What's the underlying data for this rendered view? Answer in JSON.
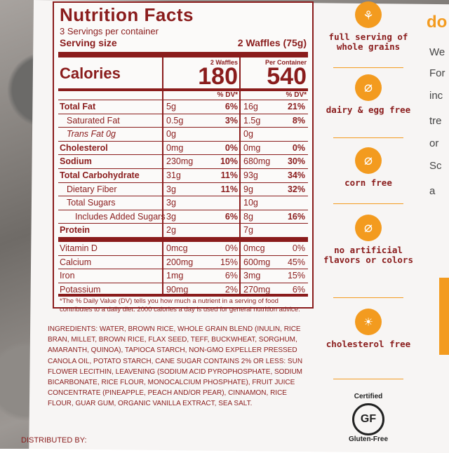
{
  "label": {
    "title": "Nutrition Facts",
    "servings": "3 Servings per container",
    "serving_size_label": "Serving size",
    "serving_size_value": "2 Waffles (75g)",
    "calories_label": "Calories",
    "col1_header": "2 Waffles",
    "col2_header": "Per Container",
    "calories_col1": "180",
    "calories_col2": "540",
    "dv_header": "% DV*",
    "rows": [
      {
        "name": "Total Fat",
        "a": "5g",
        "pa": "6%",
        "b": "16g",
        "pb": "21%"
      },
      {
        "name": "Saturated Fat",
        "a": "0.5g",
        "pa": "3%",
        "b": "1.5g",
        "pb": "8%"
      },
      {
        "name": "Trans Fat 0g",
        "a": "0g",
        "pa": "",
        "b": "0g",
        "pb": ""
      },
      {
        "name": "Cholesterol",
        "a": "0mg",
        "pa": "0%",
        "b": "0mg",
        "pb": "0%"
      },
      {
        "name": "Sodium",
        "a": "230mg",
        "pa": "10%",
        "b": "680mg",
        "pb": "30%"
      },
      {
        "name": "Total Carbohydrate",
        "a": "31g",
        "pa": "11%",
        "b": "93g",
        "pb": "34%"
      },
      {
        "name": "Dietary Fiber",
        "a": "3g",
        "pa": "11%",
        "b": "9g",
        "pb": "32%"
      },
      {
        "name": "Total Sugars",
        "a": "3g",
        "pa": "",
        "b": "10g",
        "pb": ""
      },
      {
        "name": "Includes Added Sugars",
        "a": "3g",
        "pa": "6%",
        "b": "8g",
        "pb": "16%"
      },
      {
        "name": "Protein",
        "a": "2g",
        "pa": "",
        "b": "7g",
        "pb": ""
      },
      {
        "name": "Vitamin D",
        "a": "0mcg",
        "pa": "0%",
        "b": "0mcg",
        "pb": "0%"
      },
      {
        "name": "Calcium",
        "a": "200mg",
        "pa": "15%",
        "b": "600mg",
        "pb": "45%"
      },
      {
        "name": "Iron",
        "a": "1mg",
        "pa": "6%",
        "b": "3mg",
        "pb": "15%"
      },
      {
        "name": "Potassium",
        "a": "90mg",
        "pa": "2%",
        "b": "270mg",
        "pb": "6%"
      }
    ],
    "footnote": "*The % Daily Value (DV) tells you how much a nutrient in a serving of food contributes to a daily diet. 2000 calories a day is used for general nutrition advice."
  },
  "ingredients": "Ingredients: Water, Brown Rice, Whole Grain Blend (Inulin, Rice Bran, Millet, Brown Rice, Flax Seed, Teff, Buckwheat, Sorghum, Amaranth, Quinoa), Tapioca Starch, Non-GMO Expeller Pressed Canola Oil, Potato Starch, Cane Sugar Contains 2% or less: Sun Flower Lecithin, Leavening (Sodium Acid Pyrophosphate, Sodium Bicarbonate, Rice Flour, Monocalcium Phosphate), Fruit Juice Concentrate (Pineapple, Peach and/or Pear), Cinnamon, Rice Flour, Guar Gum, Organic Vanilla Extract, Sea Salt.",
  "distributed": "DISTRIBUTED BY:",
  "badges": [
    {
      "icon": "wheat-icon",
      "label": "full serving of whole grains"
    },
    {
      "icon": "no-dairy-egg-icon",
      "label": "dairy & egg free"
    },
    {
      "icon": "no-corn-icon",
      "label": "corn free"
    },
    {
      "icon": "no-flask-icon",
      "label": "no artificial flavors or colors"
    },
    {
      "icon": "sunflower-icon",
      "label": "cholesterol free"
    }
  ],
  "gluten": {
    "certified": "Certified",
    "gf": "GF",
    "gluten_free": "Gluten-Free"
  },
  "right_fragment": {
    "heading": "do",
    "lines": [
      "We",
      "For",
      "inc",
      "tre",
      "or",
      "Sc",
      "a"
    ]
  },
  "colors": {
    "label_red": "#8a1c1c",
    "accent_orange": "#f39b1f"
  }
}
